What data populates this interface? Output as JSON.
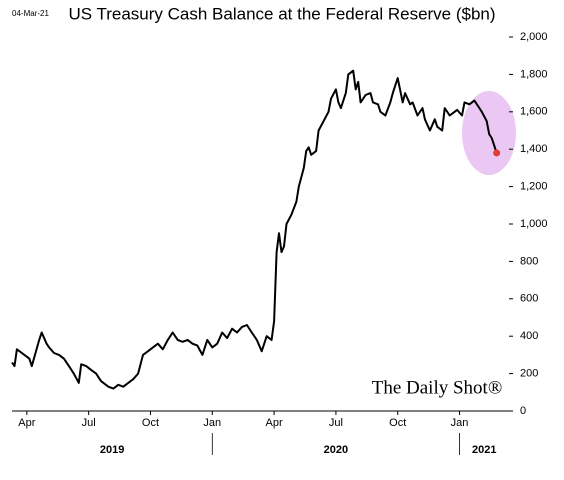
{
  "chart_data": {
    "type": "line",
    "title": "US Treasury Cash Balance at the Federal Reserve ($bn)",
    "date_stamp": "04-Mar-21",
    "watermark": "The Daily Shot®",
    "color": "#000000",
    "highlight_color": "#e53935",
    "x": [
      2019.19,
      2019.2,
      2019.21,
      2019.23,
      2019.24,
      2019.26,
      2019.27,
      2019.3,
      2019.31,
      2019.33,
      2019.34,
      2019.36,
      2019.38,
      2019.4,
      2019.42,
      2019.44,
      2019.46,
      2019.47,
      2019.49,
      2019.51,
      2019.53,
      2019.55,
      2019.58,
      2019.6,
      2019.62,
      2019.64,
      2019.66,
      2019.68,
      2019.7,
      2019.72,
      2019.74,
      2019.76,
      2019.78,
      2019.8,
      2019.82,
      2019.84,
      2019.86,
      2019.88,
      2019.9,
      2019.92,
      2019.94,
      2019.96,
      2019.98,
      2020.0,
      2020.02,
      2020.04,
      2020.06,
      2020.08,
      2020.1,
      2020.12,
      2020.14,
      2020.16,
      2020.18,
      2020.2,
      2020.22,
      2020.24,
      2020.25,
      2020.26,
      2020.27,
      2020.28,
      2020.29,
      2020.3,
      2020.32,
      2020.34,
      2020.35,
      2020.37,
      2020.38,
      2020.39,
      2020.4,
      2020.42,
      2020.43,
      2020.45,
      2020.47,
      2020.48,
      2020.5,
      2020.51,
      2020.52,
      2020.54,
      2020.55,
      2020.57,
      2020.58,
      2020.59,
      2020.6,
      2020.62,
      2020.64,
      2020.65,
      2020.67,
      2020.68,
      2020.7,
      2020.72,
      2020.73,
      2020.75,
      2020.77,
      2020.78,
      2020.8,
      2020.81,
      2020.83,
      2020.85,
      2020.86,
      2020.88,
      2020.9,
      2020.91,
      2020.93,
      2020.94,
      2020.96,
      2020.98,
      2020.99,
      2021.01,
      2021.02,
      2021.04,
      2021.06,
      2021.07,
      2021.09,
      2021.11,
      2021.12,
      2021.13,
      2021.14,
      2021.15
    ],
    "values": [
      260,
      240,
      330,
      310,
      300,
      280,
      240,
      380,
      420,
      360,
      340,
      310,
      300,
      280,
      240,
      200,
      150,
      250,
      240,
      220,
      200,
      160,
      130,
      120,
      140,
      130,
      150,
      170,
      200,
      300,
      320,
      340,
      360,
      330,
      380,
      420,
      380,
      370,
      380,
      360,
      350,
      300,
      380,
      340,
      360,
      420,
      390,
      440,
      420,
      450,
      460,
      420,
      380,
      320,
      400,
      380,
      480,
      850,
      950,
      850,
      880,
      1000,
      1050,
      1120,
      1200,
      1300,
      1390,
      1410,
      1370,
      1390,
      1500,
      1550,
      1600,
      1670,
      1720,
      1650,
      1620,
      1700,
      1800,
      1820,
      1720,
      1760,
      1650,
      1690,
      1700,
      1650,
      1640,
      1600,
      1580,
      1650,
      1700,
      1780,
      1650,
      1700,
      1640,
      1650,
      1580,
      1620,
      1560,
      1500,
      1560,
      1520,
      1500,
      1620,
      1580,
      1600,
      1610,
      1580,
      1650,
      1640,
      1660,
      1640,
      1600,
      1550,
      1480,
      1460,
      1420,
      1380
    ],
    "xlim": [
      2019.19,
      2021.2
    ],
    "xticks": [
      {
        "value": 2019.25,
        "label": "Apr"
      },
      {
        "value": 2019.5,
        "label": "Jul"
      },
      {
        "value": 2019.75,
        "label": "Oct"
      },
      {
        "value": 2020.0,
        "label": "Jan"
      },
      {
        "value": 2020.25,
        "label": "Apr"
      },
      {
        "value": 2020.5,
        "label": "Jul"
      },
      {
        "value": 2020.75,
        "label": "Oct"
      },
      {
        "value": 2021.0,
        "label": "Jan"
      }
    ],
    "years": [
      {
        "value": 2019,
        "label": "2019"
      },
      {
        "value": 2020,
        "label": "2020"
      },
      {
        "value": 2021,
        "label": "2021"
      }
    ],
    "ylim": [
      0,
      2000
    ],
    "yticks": [
      0,
      200,
      400,
      600,
      800,
      {
        "value": 1000,
        "label": "1,000"
      },
      {
        "value": 1200,
        "label": "1,200"
      },
      {
        "value": 1400,
        "label": "1,400"
      },
      {
        "value": 1600,
        "label": "1,600"
      },
      {
        "value": 1800,
        "label": "1,800"
      },
      {
        "value": 2000,
        "label": "2,000"
      }
    ],
    "grid": false
  }
}
